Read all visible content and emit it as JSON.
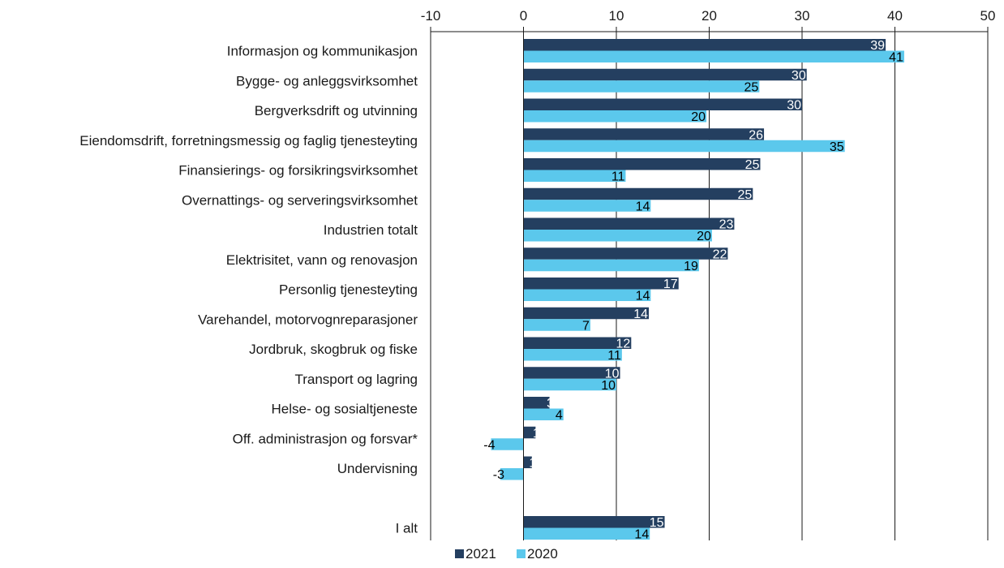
{
  "chart_data": {
    "type": "bar",
    "orientation": "horizontal",
    "xlim": [
      -10,
      50
    ],
    "xticks": [
      -10,
      0,
      10,
      20,
      30,
      40,
      50
    ],
    "categories": [
      "Informasjon og kommunikasjon",
      "Bygge- og anleggsvirksomhet",
      "Bergverksdrift og utvinning",
      "Eiendomsdrift, forretningsmessig og faglig tjenesteyting",
      "Finansierings- og forsikringsvirksomhet",
      "Overnattings- og serveringsvirksomhet",
      "Industrien totalt",
      "Elektrisitet, vann og renovasjon",
      "Personlig tjenesteyting",
      "Varehandel, motorvognreparasjoner",
      "Jordbruk, skogbruk og fiske",
      "Transport og lagring",
      "Helse- og sosialtjeneste",
      "Off. administrasjon og forsvar*",
      "Undervisning",
      "",
      "I alt"
    ],
    "series": [
      {
        "name": "2021",
        "color": "#243f60",
        "values": [
          39,
          30,
          30,
          26,
          25,
          25,
          23,
          22,
          17,
          14,
          12,
          10,
          3,
          1,
          1,
          null,
          15
        ],
        "plot_values": [
          39,
          30.5,
          30,
          25.9,
          25.5,
          24.7,
          22.7,
          22,
          16.7,
          13.5,
          11.6,
          10.4,
          2.8,
          1.3,
          0.9,
          null,
          15.2
        ]
      },
      {
        "name": "2020",
        "color": "#5bc8ec",
        "values": [
          41,
          25,
          20,
          35,
          11,
          14,
          20,
          19,
          14,
          7,
          11,
          10,
          4,
          -4,
          -3,
          null,
          14
        ],
        "plot_values": [
          41,
          25.4,
          19.7,
          34.6,
          11,
          13.7,
          20.3,
          18.9,
          13.7,
          7.2,
          10.6,
          10,
          4.3,
          -3.5,
          -2.5,
          null,
          13.6
        ]
      }
    ],
    "legend": [
      "2021",
      "2020"
    ],
    "legend_position": "bottom",
    "grid": "vertical"
  }
}
